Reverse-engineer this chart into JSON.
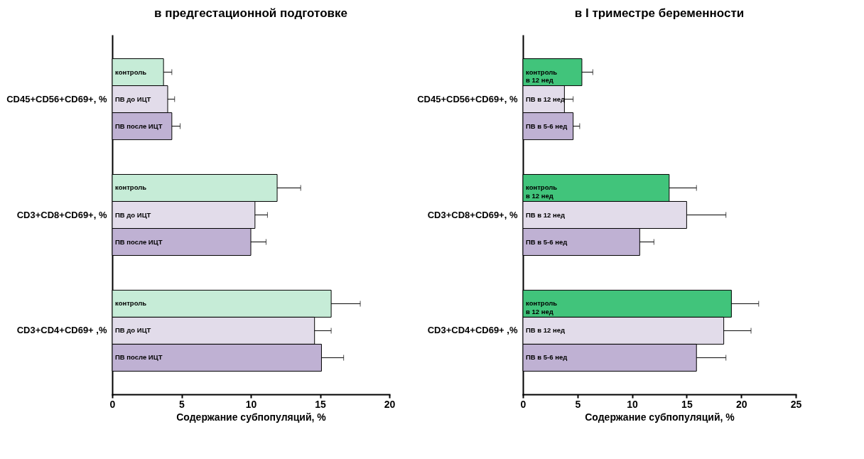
{
  "chart_data": [
    {
      "type": "bar",
      "orientation": "horizontal",
      "title": "в предгестационной подготовке",
      "xlabel": "Содержание субпопуляций, %",
      "categories": [
        "CD45+CD56+CD69+, %",
        "CD3+CD8+CD69+, %",
        "CD3+CD4+CD69+ ,%"
      ],
      "series": [
        {
          "name": "контроль",
          "color": "#c6ecd7",
          "values": [
            3.7,
            11.9,
            15.8
          ],
          "errors": [
            0.6,
            1.7,
            2.1
          ]
        },
        {
          "name": "ПВ до ИЦТ",
          "color": "#e2dcea",
          "values": [
            4.0,
            10.3,
            14.6
          ],
          "errors": [
            0.5,
            0.9,
            1.2
          ]
        },
        {
          "name": "ПВ после ИЦТ",
          "color": "#bfb1d3",
          "values": [
            4.3,
            10.0,
            15.1
          ],
          "errors": [
            0.6,
            1.1,
            1.6
          ]
        }
      ],
      "xlim": [
        0,
        20
      ],
      "xticks": [
        0,
        5,
        10,
        15,
        20
      ],
      "grid": false
    },
    {
      "type": "bar",
      "orientation": "horizontal",
      "title": "в I триместре беременности",
      "xlabel": "Содержание субпопуляций, %",
      "categories": [
        "CD45+CD56+CD69+, %",
        "CD3+CD8+CD69+, %",
        "CD3+CD4+CD69+ ,%"
      ],
      "series": [
        {
          "name": "контроль\nв 12 нед",
          "color": "#41c47b",
          "values": [
            5.4,
            13.4,
            19.1
          ],
          "errors": [
            1.0,
            2.5,
            2.5
          ]
        },
        {
          "name": "ПВ в 12 нед",
          "color": "#e2dcea",
          "values": [
            3.8,
            15.0,
            18.4
          ],
          "errors": [
            0.8,
            3.6,
            2.5
          ]
        },
        {
          "name": "ПВ в 5-6 нед",
          "color": "#bfb1d3",
          "values": [
            4.6,
            10.7,
            15.9
          ],
          "errors": [
            0.6,
            1.3,
            2.7
          ]
        }
      ],
      "xlim": [
        0,
        25
      ],
      "xticks": [
        0,
        5,
        10,
        15,
        20,
        25
      ],
      "grid": false
    }
  ]
}
